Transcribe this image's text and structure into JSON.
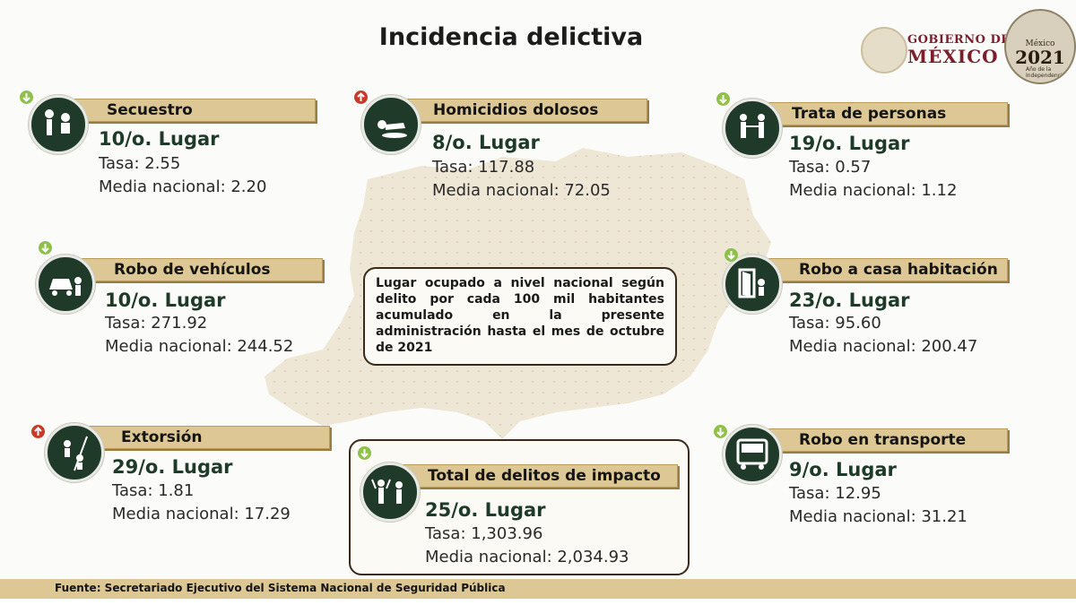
{
  "title": "Incidencia delictiva",
  "logo": {
    "line1": "GOBIERNO DE",
    "line2": "MÉXICO"
  },
  "badge": {
    "country": "México",
    "year": "2021",
    "caption": "Año de la Independencia"
  },
  "note": "Lugar ocupado a nivel nacional según delito por cada 100 mil habitantes acumulado en la presente administración hasta el mes de octubre de 2021",
  "crimes": [
    {
      "name": "Secuestro",
      "lugar": "10/o. Lugar",
      "tasa": "Tasa: 2.55",
      "media": "Media nacional: 2.20",
      "trend": "down",
      "icon": "kidnapping-icon"
    },
    {
      "name": "Homicidios dolosos",
      "lugar": "8/o. Lugar",
      "tasa": "Tasa: 117.88",
      "media": "Media nacional:  72.05",
      "trend": "up",
      "icon": "homicide-icon"
    },
    {
      "name": "Trata de personas",
      "lugar": "19/o. Lugar",
      "tasa": "Tasa: 0.57",
      "media": "Media nacional: 1.12",
      "trend": "down",
      "icon": "human-trafficking-icon"
    },
    {
      "name": "Robo de vehículos",
      "lugar": "10/o. Lugar",
      "tasa": "Tasa: 271.92",
      "media": "Media nacional: 244.52",
      "trend": "down",
      "icon": "car-theft-icon"
    },
    {
      "name": "Robo a casa habitación",
      "lugar": "23/o. Lugar",
      "tasa": "Tasa: 95.60",
      "media": "Media nacional: 200.47",
      "trend": "down",
      "icon": "home-burglary-icon"
    },
    {
      "name": "Extorsión",
      "lugar": "29/o. Lugar",
      "tasa": "Tasa: 1.81",
      "media": "Media nacional: 17.29",
      "trend": "up",
      "icon": "extortion-icon"
    },
    {
      "name": "Total de delitos de impacto",
      "lugar": "25/o. Lugar",
      "tasa": "Tasa: 1,303.96",
      "media": "Media nacional: 2,034.93",
      "trend": "down",
      "icon": "total-impact-icon"
    },
    {
      "name": "Robo en transporte",
      "lugar": "9/o. Lugar",
      "tasa": "Tasa: 12.95",
      "media": "Media nacional: 31.21",
      "trend": "down",
      "icon": "public-transport-icon"
    }
  ],
  "footer": "Fuente: Secretariado Ejecutivo del Sistema Nacional de Seguridad Pública",
  "colors": {
    "accent_gold": "#dcc795",
    "icon_green": "#203a2a",
    "rank_green": "#1e3a28",
    "trend_down": "#8fc04a",
    "trend_up": "#c73a2a",
    "logo_maroon": "#7a1e2b"
  }
}
